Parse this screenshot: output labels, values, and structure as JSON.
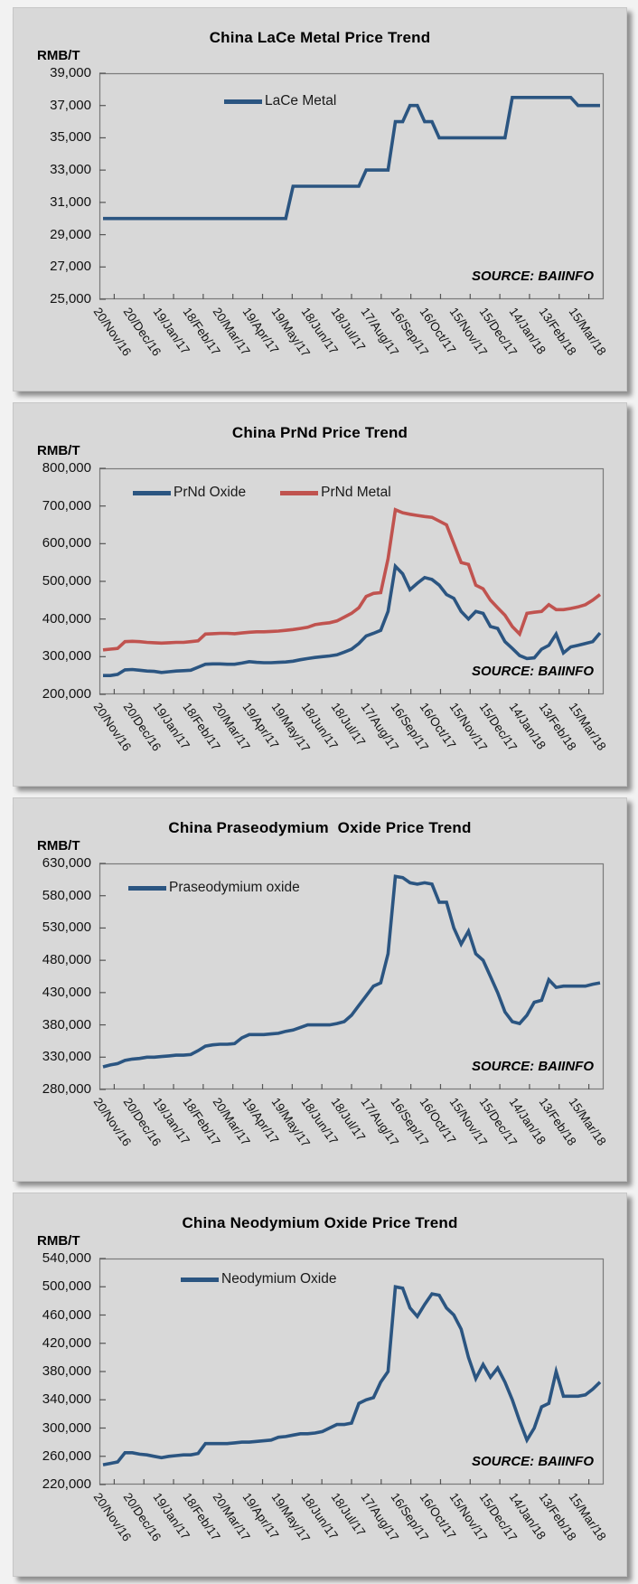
{
  "page": {
    "background": "#f2f2f2",
    "panel_background": "#d8d8d8"
  },
  "labels": {
    "unit": "RMB/T",
    "source": "SOURCE: BAIINFO"
  },
  "colors": {
    "series_blue": "#2b5581",
    "series_red": "#c0534f",
    "plot_border": "#7a7a7a",
    "tick": "#555555"
  },
  "chart_data": [
    {
      "type": "line",
      "title": "China LaCe Metal Price Trend",
      "ylabel": "RMB/T",
      "ylim": [
        25000,
        39000
      ],
      "ytick_step": 2000,
      "ytick_labels": [
        "39,000",
        "37,000",
        "35,000",
        "33,000",
        "31,000",
        "29,000",
        "27,000",
        "25,000"
      ],
      "grid": false,
      "legend_position": "inside-top",
      "source": "SOURCE: BAIINFO",
      "categories": [
        "20/Nov/16",
        "20/Dec/16",
        "19/Jan/17",
        "18/Feb/17",
        "20/Mar/17",
        "19/Apr/17",
        "19/May/17",
        "18/Jun/17",
        "18/Jul/17",
        "17/Aug/17",
        "16/Sep/17",
        "16/Oct/17",
        "15/Nov/17",
        "15/Dec/17",
        "14/Jan/18",
        "13/Feb/18",
        "15/Mar/18"
      ],
      "series": [
        {
          "name": "LaCe Metal",
          "color": "#2b5581",
          "values": [
            30000,
            30000,
            30000,
            30000,
            30000,
            30000,
            30000,
            30000,
            30000,
            30000,
            30000,
            30000,
            30000,
            30000,
            30000,
            30000,
            30000,
            30000,
            30000,
            30000,
            30000,
            30000,
            30000,
            30000,
            30000,
            30000,
            32000,
            32000,
            32000,
            32000,
            32000,
            32000,
            32000,
            32000,
            32000,
            32000,
            33000,
            33000,
            33000,
            33000,
            36000,
            36000,
            37000,
            37000,
            36000,
            36000,
            35000,
            35000,
            35000,
            35000,
            35000,
            35000,
            35000,
            35000,
            35000,
            35000,
            37500,
            37500,
            37500,
            37500,
            37500,
            37500,
            37500,
            37500,
            37500,
            37000,
            37000,
            37000,
            37000
          ]
        }
      ]
    },
    {
      "type": "line",
      "title": "China PrNd Price Trend",
      "ylabel": "RMB/T",
      "ylim": [
        200000,
        800000
      ],
      "ytick_step": 100000,
      "ytick_labels": [
        "800,000",
        "700,000",
        "600,000",
        "500,000",
        "400,000",
        "300,000",
        "200,000"
      ],
      "grid": false,
      "legend_position": "inside-top",
      "source": "SOURCE: BAIINFO",
      "categories": [
        "20/Nov/16",
        "20/Dec/16",
        "19/Jan/17",
        "18/Feb/17",
        "20/Mar/17",
        "19/Apr/17",
        "19/May/17",
        "18/Jun/17",
        "18/Jul/17",
        "17/Aug/17",
        "16/Sep/17",
        "16/Oct/17",
        "15/Nov/17",
        "15/Dec/17",
        "14/Jan/18",
        "13/Feb/18",
        "15/Mar/18"
      ],
      "series": [
        {
          "name": "PrNd Oxide",
          "color": "#2b5581",
          "values": [
            250000,
            250000,
            253000,
            265000,
            266000,
            264000,
            262000,
            261000,
            258000,
            260000,
            262000,
            263000,
            264000,
            272000,
            280000,
            281000,
            281000,
            280000,
            280000,
            283000,
            287000,
            285000,
            284000,
            284000,
            285000,
            286000,
            288000,
            292000,
            295000,
            298000,
            300000,
            302000,
            305000,
            312000,
            320000,
            335000,
            355000,
            362000,
            370000,
            420000,
            540000,
            520000,
            478000,
            495000,
            510000,
            505000,
            490000,
            465000,
            455000,
            420000,
            400000,
            420000,
            415000,
            380000,
            375000,
            340000,
            322000,
            303000,
            295000,
            297000,
            320000,
            330000,
            360000,
            310000,
            326000,
            330000,
            335000,
            340000,
            363000
          ]
        },
        {
          "name": "PrNd Metal",
          "color": "#c0534f",
          "values": [
            318000,
            320000,
            322000,
            340000,
            341000,
            340000,
            338000,
            337000,
            336000,
            337000,
            338000,
            338000,
            340000,
            342000,
            360000,
            361000,
            362000,
            362000,
            361000,
            363000,
            365000,
            366000,
            366000,
            367000,
            368000,
            370000,
            372000,
            375000,
            378000,
            385000,
            388000,
            390000,
            395000,
            405000,
            415000,
            430000,
            460000,
            468000,
            470000,
            560000,
            690000,
            682000,
            678000,
            675000,
            672000,
            670000,
            660000,
            650000,
            600000,
            550000,
            545000,
            490000,
            480000,
            450000,
            430000,
            410000,
            380000,
            360000,
            415000,
            418000,
            420000,
            438000,
            425000,
            425000,
            428000,
            432000,
            438000,
            450000,
            465000
          ]
        }
      ]
    },
    {
      "type": "line",
      "title": "China Praseodymium  Oxide Price Trend",
      "ylabel": "RMB/T",
      "ylim": [
        280000,
        630000
      ],
      "ytick_step": 50000,
      "ytick_labels": [
        "630,000",
        "580,000",
        "530,000",
        "480,000",
        "430,000",
        "380,000",
        "330,000",
        "280,000"
      ],
      "grid": false,
      "legend_position": "inside-top",
      "source": "SOURCE: BAIINFO",
      "categories": [
        "20/Nov/16",
        "20/Dec/16",
        "19/Jan/17",
        "18/Feb/17",
        "20/Mar/17",
        "19/Apr/17",
        "19/May/17",
        "18/Jun/17",
        "18/Jul/17",
        "17/Aug/17",
        "16/Sep/17",
        "16/Oct/17",
        "15/Nov/17",
        "15/Dec/17",
        "14/Jan/18",
        "13/Feb/18",
        "15/Mar/18"
      ],
      "series": [
        {
          "name": "Praseodymium oxide",
          "color": "#2b5581",
          "values": [
            315000,
            318000,
            320000,
            325000,
            327000,
            328000,
            330000,
            330000,
            331000,
            332000,
            333000,
            333000,
            334000,
            340000,
            347000,
            349000,
            350000,
            350000,
            351000,
            360000,
            365000,
            365000,
            365000,
            366000,
            367000,
            370000,
            372000,
            376000,
            380000,
            380000,
            380000,
            380000,
            382000,
            385000,
            395000,
            410000,
            425000,
            440000,
            445000,
            490000,
            610000,
            608000,
            600000,
            598000,
            600000,
            598000,
            570000,
            570000,
            530000,
            505000,
            525000,
            490000,
            480000,
            455000,
            430000,
            400000,
            385000,
            382000,
            395000,
            415000,
            418000,
            450000,
            438000,
            440000,
            440000,
            440000,
            440000,
            443000,
            445000
          ]
        }
      ]
    },
    {
      "type": "line",
      "title": "China Neodymium Oxide Price Trend",
      "ylabel": "RMB/T",
      "ylim": [
        220000,
        540000
      ],
      "ytick_step": 40000,
      "ytick_labels": [
        "540,000",
        "500,000",
        "460,000",
        "420,000",
        "380,000",
        "340,000",
        "300,000",
        "260,000",
        "220,000"
      ],
      "grid": false,
      "legend_position": "inside-top",
      "source": "SOURCE: BAIINFO",
      "categories": [
        "20/Nov/16",
        "20/Dec/16",
        "19/Jan/17",
        "18/Feb/17",
        "20/Mar/17",
        "19/Apr/17",
        "19/May/17",
        "18/Jun/17",
        "18/Jul/17",
        "17/Aug/17",
        "16/Sep/17",
        "16/Oct/17",
        "15/Nov/17",
        "15/Dec/17",
        "14/Jan/18",
        "13/Feb/18",
        "15/Mar/18"
      ],
      "series": [
        {
          "name": "Neodymium Oxide",
          "color": "#2b5581",
          "values": [
            248000,
            250000,
            252000,
            265000,
            265000,
            263000,
            262000,
            260000,
            258000,
            260000,
            261000,
            262000,
            262000,
            264000,
            278000,
            278000,
            278000,
            278000,
            279000,
            280000,
            280000,
            281000,
            282000,
            283000,
            287000,
            288000,
            290000,
            292000,
            292000,
            293000,
            295000,
            300000,
            305000,
            305000,
            307000,
            335000,
            340000,
            343000,
            365000,
            380000,
            500000,
            498000,
            470000,
            458000,
            475000,
            490000,
            488000,
            470000,
            460000,
            440000,
            400000,
            370000,
            390000,
            372000,
            385000,
            365000,
            340000,
            310000,
            283000,
            300000,
            330000,
            335000,
            380000,
            345000,
            345000,
            345000,
            347000,
            355000,
            365000
          ]
        }
      ]
    }
  ]
}
